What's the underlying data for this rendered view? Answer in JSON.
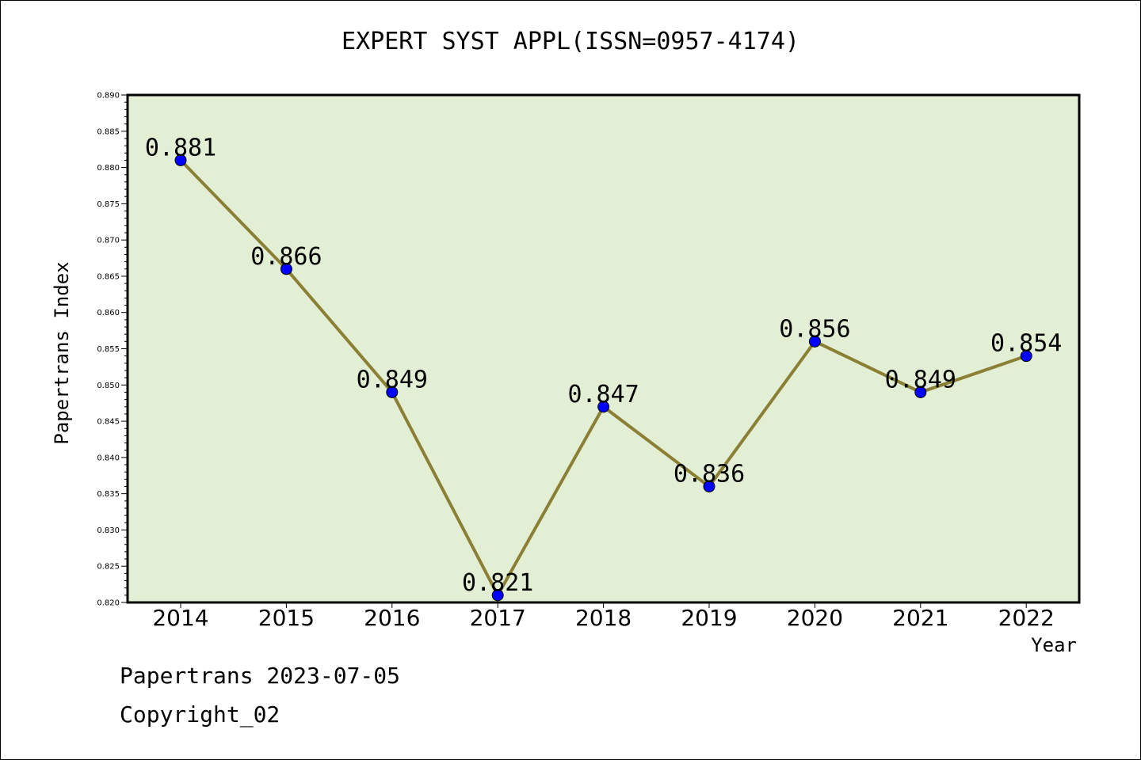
{
  "chart_data": {
    "type": "line",
    "title": "EXPERT SYST APPL(ISSN=0957-4174)",
    "xlabel": "Year",
    "ylabel": "Papertrans Index",
    "categories": [
      "2014",
      "2015",
      "2016",
      "2017",
      "2018",
      "2019",
      "2020",
      "2021",
      "2022"
    ],
    "series": [
      {
        "values": [
          0.881,
          0.866,
          0.849,
          0.821,
          0.847,
          0.836,
          0.856,
          0.849,
          0.854
        ]
      }
    ],
    "data_labels": [
      "0.881",
      "0.866",
      "0.849",
      "0.821",
      "0.847",
      "0.836",
      "0.856",
      "0.849",
      "0.854"
    ],
    "ylim": [
      0.82,
      0.89
    ],
    "yticks": [
      "0.820",
      "0.825",
      "0.830",
      "0.835",
      "0.840",
      "0.845",
      "0.850",
      "0.855",
      "0.860",
      "0.865",
      "0.870",
      "0.875",
      "0.880",
      "0.885",
      "0.890"
    ],
    "grid": false,
    "legend": "none",
    "colors": {
      "plot_background": "#e2efd5",
      "line": "#8b7f35",
      "marker": "#0000ff"
    }
  },
  "footer": {
    "line1": "Papertrans 2023-07-05",
    "line2": "Copyright_02"
  }
}
